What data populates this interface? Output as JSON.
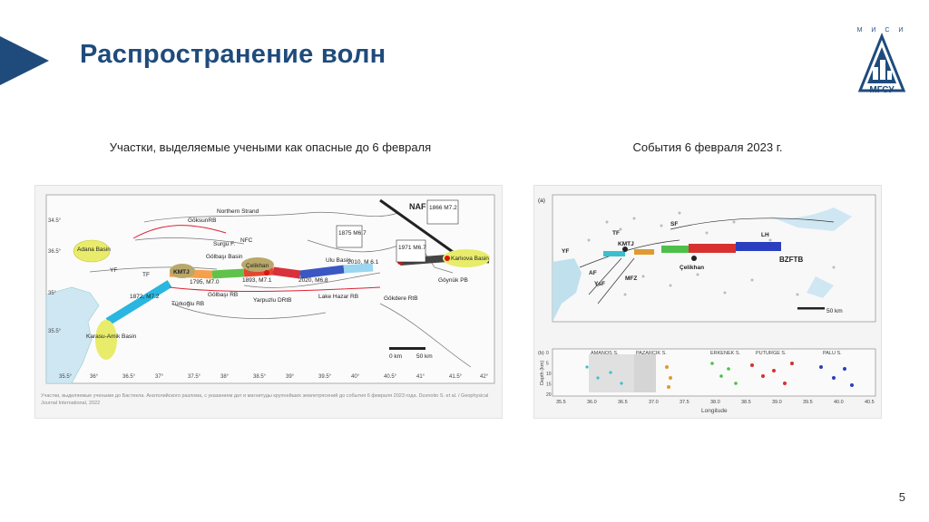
{
  "header": {
    "title": "Распространение волн"
  },
  "logo": {
    "letters": "М И С И",
    "text": "МГСУ"
  },
  "captions": {
    "left": "Участки, выделяемые учеными как опасные до 6 февраля",
    "right": "События 6 февраля 2023 г."
  },
  "figure_left": {
    "labels": {
      "goksun": "GöksunRB",
      "northern_strand": "Northern Strand",
      "surgu": "Surgu F.",
      "nfc": "NFC",
      "naf": "NAF",
      "adana": "Adana Basin",
      "kmt": "KMTJ",
      "yf": "YF",
      "tf": "TF",
      "golbasi_basin": "Gölbaşı Basin",
      "celikhan": "Çelikhan",
      "ulu_basin": "Ulu Basin",
      "karliova": "Karlıova Basin",
      "quake_1875": "1875 M6.7",
      "quake_1866": "1866 M7.2",
      "quake_1971": "1971 M6.7",
      "seg_1795": "1795, M7.0",
      "seg_1893": "1893, M7.1",
      "seg_2020": "2020, M6.8",
      "seg_2010": "2010, M 6.1",
      "seg_1872": "1872, M7.2",
      "golbasi_rb": "Gölbaşı RB",
      "turkoglu": "Türkoğlu RB",
      "yarpuzlu": "Yarpuzlu DRtB",
      "lake_hazar": "Lake Hazar RB",
      "gokdere": "Gökdere RtB",
      "goynuk": "Göynük PB",
      "karasu": "Karasu-Amik Basin",
      "scale_0": "0 km",
      "scale_50": "50 km",
      "source": "Участки, выделяемые учеными до Бастекла. Анатолийского разлома, с указанием дат и магнитуды крупнейших землетрясений до события 6 февраля 2023 года. Duvnoito S. et al. / Geophysical Journal International, 2022"
    }
  },
  "figure_right": {
    "labels": {
      "panel_a": "(a)",
      "panel_b": "(b)",
      "sf": "SF",
      "yf": "YF",
      "af": "AF",
      "ysf": "YsF",
      "mfz": "MFZ",
      "kmtj": "KMTJ",
      "celikhan": "Çelikhan",
      "lh": "LH",
      "bzftb": "BZFTB",
      "tf": "TF",
      "seg_amanos": "AMANOS S.",
      "seg_pazarcik": "PAZARCIK S.",
      "seg_erkenek": "ERKENEK S.",
      "seg_pu": "PUTURGE S.",
      "seg_palu": "PALU S.",
      "y_axis": "Depth (km)",
      "x_axis": "Longitude",
      "scale": "50 km"
    },
    "x_ticks": [
      "35.5",
      "36.0",
      "36.5",
      "37.0",
      "37.5",
      "38.0",
      "38.5",
      "39.0",
      "39.5",
      "40.0",
      "40.5"
    ],
    "depth_ticks": [
      "0",
      "5",
      "10",
      "15",
      "20"
    ]
  },
  "page": {
    "number": "5"
  }
}
